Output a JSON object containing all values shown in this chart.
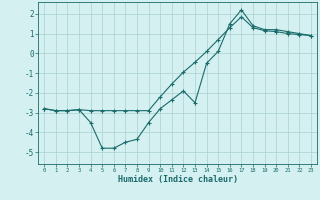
{
  "xlabel": "Humidex (Indice chaleur)",
  "bg_color": "#d4f0f0",
  "line_color": "#1a6b6b",
  "grid_color": "#aacfcf",
  "xlim": [
    -0.5,
    23.5
  ],
  "ylim": [
    -5.6,
    2.6
  ],
  "xticks": [
    0,
    1,
    2,
    3,
    4,
    5,
    6,
    7,
    8,
    9,
    10,
    11,
    12,
    13,
    14,
    15,
    16,
    17,
    18,
    19,
    20,
    21,
    22,
    23
  ],
  "yticks": [
    -5,
    -4,
    -3,
    -2,
    -1,
    0,
    1,
    2
  ],
  "line1_x": [
    0,
    1,
    2,
    3,
    4,
    5,
    6,
    7,
    8,
    9,
    10,
    11,
    12,
    13,
    14,
    15,
    16,
    17,
    18,
    19,
    20,
    21,
    22,
    23
  ],
  "line1_y": [
    -2.8,
    -2.9,
    -2.9,
    -2.85,
    -3.5,
    -4.8,
    -4.8,
    -4.5,
    -4.35,
    -3.5,
    -2.8,
    -2.35,
    -1.9,
    -2.5,
    -0.5,
    0.1,
    1.5,
    2.2,
    1.4,
    1.2,
    1.2,
    1.1,
    1.0,
    0.9
  ],
  "line2_x": [
    0,
    1,
    2,
    3,
    4,
    5,
    6,
    7,
    8,
    9,
    10,
    11,
    12,
    13,
    14,
    15,
    16,
    17,
    18,
    19,
    20,
    21,
    22,
    23
  ],
  "line2_y": [
    -2.8,
    -2.9,
    -2.9,
    -2.85,
    -2.9,
    -2.9,
    -2.9,
    -2.9,
    -2.9,
    -2.9,
    -2.2,
    -1.55,
    -0.95,
    -0.45,
    0.1,
    0.7,
    1.3,
    1.85,
    1.3,
    1.15,
    1.1,
    1.0,
    0.95,
    0.9
  ]
}
